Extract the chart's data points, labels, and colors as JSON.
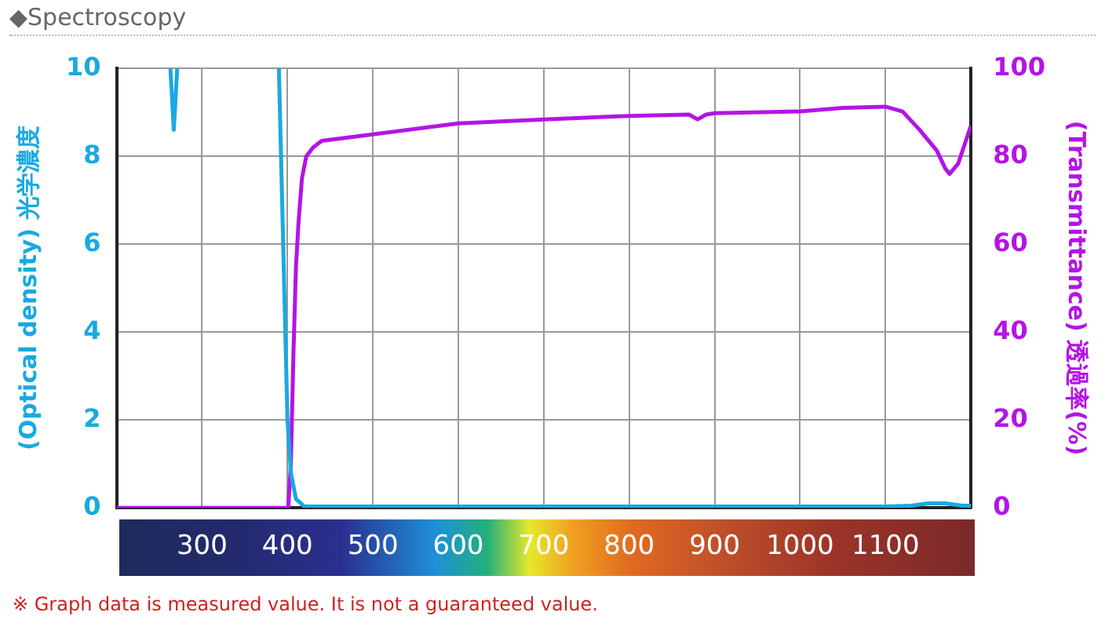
{
  "chart_data": {
    "type": "line",
    "title": "◆Spectroscopy",
    "ylabel": "(Optical density) 光学濃度",
    "y2label": "(Transmittance) 透過率(%)",
    "annotations": [
      "※ Graph data is measured value. It is not a guaranteed value."
    ],
    "xlim": [
      200,
      1200
    ],
    "xticks": [
      {
        "value": 200,
        "label": null
      },
      300,
      400,
      500,
      600,
      700,
      800,
      900,
      1000,
      1100,
      {
        "value": 1200,
        "label": null
      }
    ],
    "ylim": [
      0,
      10
    ],
    "yticks": [
      0,
      2,
      4,
      6,
      8,
      10
    ],
    "y2lim": [
      0,
      100
    ],
    "y2ticks": [
      0,
      20,
      40,
      60,
      80,
      100
    ],
    "grid": true,
    "marker": "none",
    "series": [
      {
        "color": "#1aa9e0",
        "x": [
          263,
          267,
          271,
          275,
          385,
          390,
          395,
          400,
          404,
          410,
          420,
          450,
          500,
          600,
          700,
          800,
          900,
          1000,
          1100,
          1130,
          1150,
          1170,
          1190,
          1200
        ],
        "values": [
          10,
          8.6,
          10,
          null,
          null,
          10,
          6,
          2,
          0.8,
          0.2,
          0.03,
          0.03,
          0.03,
          0.03,
          0.03,
          0.03,
          0.03,
          0.03,
          0.03,
          0.05,
          0.1,
          0.1,
          0.05,
          0.05
        ]
      },
      {
        "color": "#b414e6",
        "axis": "y2",
        "x": [
          200,
          401,
          404,
          407,
          410,
          413,
          417,
          422,
          430,
          440,
          500,
          600,
          700,
          800,
          870,
          880,
          890,
          900,
          1000,
          1050,
          1100,
          1120,
          1140,
          1160,
          1170,
          1175,
          1185,
          1200
        ],
        "values": [
          0,
          0,
          10,
          35,
          55,
          65,
          75,
          80,
          82,
          83.5,
          85,
          87.5,
          88.4,
          89.2,
          89.5,
          88.4,
          89.5,
          89.8,
          90.2,
          91,
          91.3,
          90.2,
          86,
          81.3,
          77.2,
          76,
          78.3,
          87
        ]
      }
    ]
  }
}
